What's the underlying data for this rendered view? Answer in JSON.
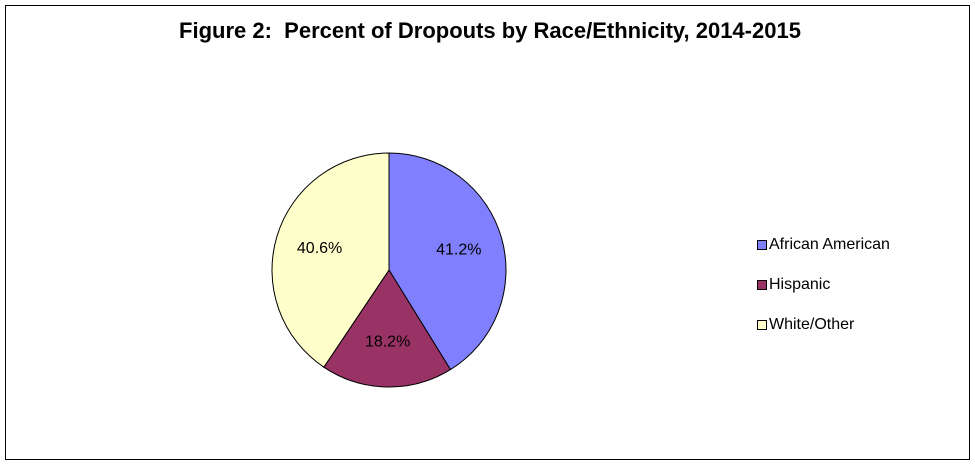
{
  "chart_data": {
    "type": "pie",
    "title": "Figure 2:  Percent of Dropouts by Race/Ethnicity, 2014-2015",
    "categories": [
      "African American",
      "Hispanic",
      "White/Other"
    ],
    "values": [
      41.2,
      18.2,
      40.6
    ],
    "value_labels": [
      "41.2%",
      "18.2%",
      "40.6%"
    ],
    "colors": [
      "#8080ff",
      "#993366",
      "#ffffcc"
    ],
    "legend": "right"
  }
}
